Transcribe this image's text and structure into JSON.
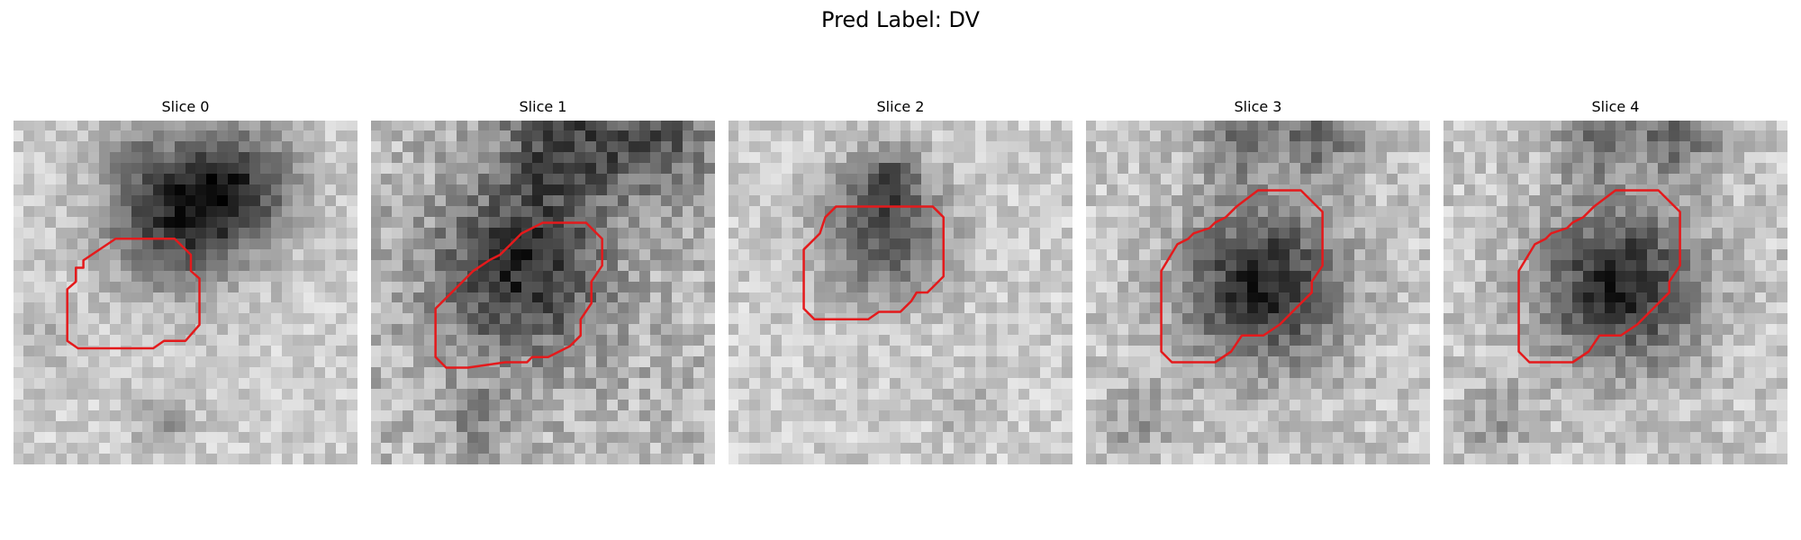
{
  "figure": {
    "title": "Pred Label: DV"
  },
  "panels": [
    {
      "title": "Slice 0",
      "contour_color": "#e41a1c"
    },
    {
      "title": "Slice 1",
      "contour_color": "#e41a1c"
    },
    {
      "title": "Slice 2",
      "contour_color": "#e41a1c"
    },
    {
      "title": "Slice 3",
      "contour_color": "#e41a1c"
    },
    {
      "title": "Slice 4",
      "contour_color": "#e41a1c"
    }
  ]
}
